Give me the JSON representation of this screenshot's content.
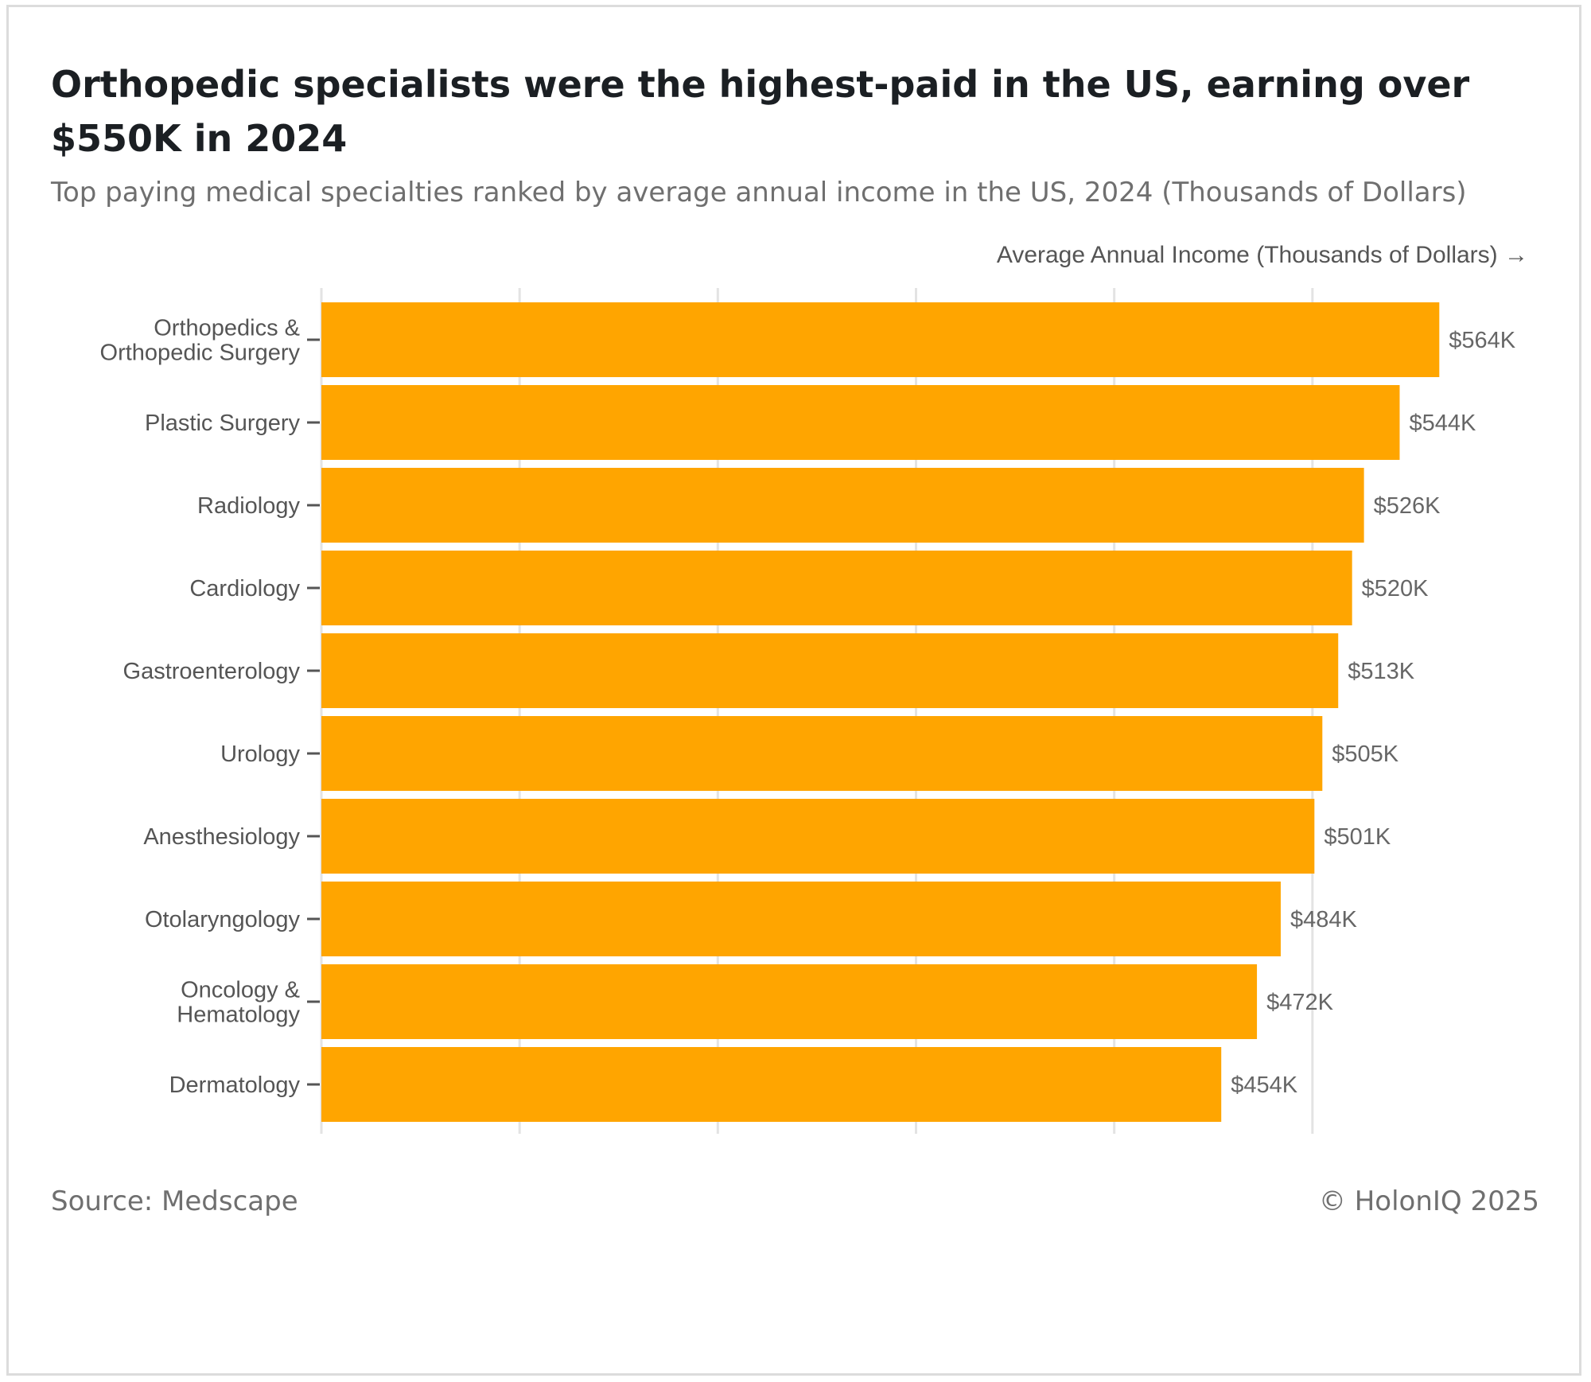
{
  "header": {
    "title": "Orthopedic specialists were the highest-paid in the US, earning over $550K in 2024",
    "subtitle": "Top paying medical specialties ranked by average annual income in the US, 2024 (Thousands of Dollars)"
  },
  "footer": {
    "source": "Source: Medscape",
    "copyright": "© HolonIQ 2025"
  },
  "colors": {
    "bar": "#FFA500",
    "grid": "#e3e3e3",
    "text": "#555555"
  },
  "chart_data": {
    "type": "bar",
    "orientation": "horizontal",
    "title": "Orthopedic specialists were the highest-paid in the US, earning over $550K in 2024",
    "subtitle": "Top paying medical specialties ranked by average annual income in the US, 2024 (Thousands of Dollars)",
    "xlabel": "Average Annual Income (Thousands of Dollars) →",
    "ylabel": "",
    "xlim": [
      0,
      600
    ],
    "grid": true,
    "gridlines": [
      0,
      100,
      200,
      300,
      400,
      500
    ],
    "categories": [
      [
        "Orthopedics &",
        "Orthopedic Surgery"
      ],
      [
        "Plastic Surgery"
      ],
      [
        "Radiology"
      ],
      [
        "Cardiology"
      ],
      [
        "Gastroenterology"
      ],
      [
        "Urology"
      ],
      [
        "Anesthesiology"
      ],
      [
        "Otolaryngology"
      ],
      [
        "Oncology &",
        "Hematology"
      ],
      [
        "Dermatology"
      ]
    ],
    "values": [
      564,
      544,
      526,
      520,
      513,
      505,
      501,
      484,
      472,
      454
    ],
    "data_labels": [
      "$564K",
      "$544K",
      "$526K",
      "$520K",
      "$513K",
      "$505K",
      "$501K",
      "$484K",
      "$472K",
      "$454K"
    ]
  }
}
